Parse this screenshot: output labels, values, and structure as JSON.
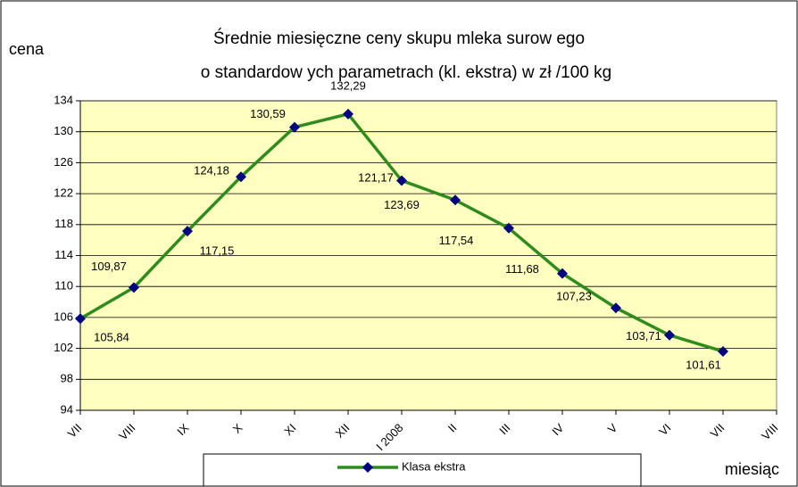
{
  "chart_data": {
    "type": "line",
    "title": [
      "Średnie miesięczne ceny skupu mleka surow ego",
      "o standardow ych parametrach (kl. ekstra) w zł /100 kg"
    ],
    "y_label": "cena",
    "x_label": "miesiąc",
    "categories": [
      "VII",
      "VIII",
      "IX",
      "X",
      "XI",
      "XII",
      "I 2008",
      "II",
      "III",
      "IV",
      "V",
      "VI",
      "VII",
      "VIII"
    ],
    "series": [
      {
        "name": "Klasa ekstra",
        "color": "#2e8b1e",
        "marker_color": "#000080",
        "values": [
          105.84,
          109.87,
          117.15,
          124.18,
          130.59,
          132.29,
          123.69,
          121.17,
          117.54,
          111.68,
          107.23,
          103.71,
          101.61,
          null
        ],
        "value_labels": [
          "105,84",
          "109,87",
          "117,15",
          "124,18",
          "130,59",
          "132,29",
          "123,69",
          "121,17",
          "117,54",
          "111,68",
          "107,23",
          "103,71",
          "101,61",
          null
        ]
      }
    ],
    "ylim": [
      94,
      134
    ],
    "yticks": [
      94,
      98,
      102,
      106,
      110,
      114,
      118,
      122,
      126,
      130,
      134
    ],
    "grid": true,
    "legend": "bottom",
    "plot_background": "#ffffc0"
  }
}
